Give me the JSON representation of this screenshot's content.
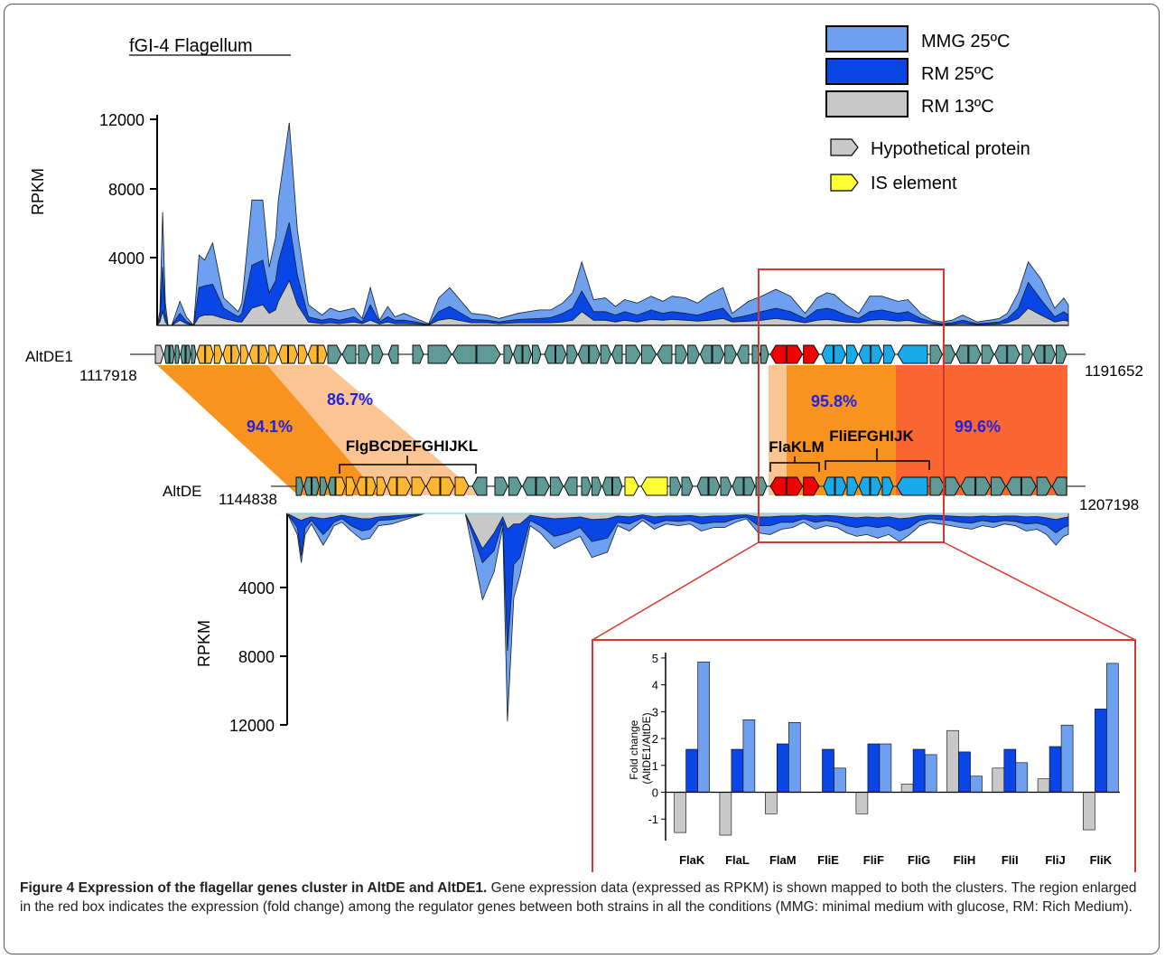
{
  "figure_title": "fGI-4 Flagellum",
  "legend": [
    {
      "label": "MMG 25ºC",
      "color": "#6fa0f0"
    },
    {
      "label": "RM 25ºC",
      "color": "#0a46e6"
    },
    {
      "label": "RM 13ºC",
      "color": "#c8c8c8"
    }
  ],
  "gene_legend": [
    {
      "label": "Hypothetical protein",
      "color": "#c8c8c8"
    },
    {
      "label": "IS element",
      "color": "#ffff33"
    }
  ],
  "top_track": {
    "ylabel": "RPKM",
    "ticks": [
      "12000",
      "8000",
      "4000"
    ],
    "strain": "AltDE1",
    "start": "1117918",
    "end": "1191652"
  },
  "bottom_track": {
    "ylabel": "RPKM",
    "ticks": [
      "4000",
      "8000",
      "12000"
    ],
    "strain": "AltDE",
    "start": "1144838",
    "end": "1207198"
  },
  "identity_labels": [
    "94.1%",
    "86.7%",
    "95.8%",
    "99.6%"
  ],
  "gene_groups": [
    "FlgBCDEFGHIJKL",
    "FlaKLM",
    "FliEFGHIJK"
  ],
  "colors": {
    "gene_default": "#5f9a96",
    "flg_genes": "#ffb732",
    "fla_genes": "#f00000",
    "fli_genes": "#19aaea",
    "highlight_box": "#d9372b",
    "identity_dark": "#f7931e",
    "identity_light": "#fbc593",
    "identity_red": "#fb6633"
  },
  "chart_data": [
    {
      "type": "area",
      "title": "fGI-4 Flagellum",
      "subtitle": "AltDE1",
      "ylabel": "RPKM",
      "ylim": [
        0,
        12000
      ],
      "x": [
        0,
        0.3,
        0.6,
        0.9,
        1.2,
        1.6,
        2.5,
        3.2,
        4,
        4.6,
        5.2,
        6.1,
        7.3,
        8.9,
        9.3,
        10.4,
        11.6,
        12.3,
        13,
        13.3,
        14.5,
        15.4,
        16.6,
        18.1,
        19,
        20,
        21.6,
        22.5,
        23.4,
        24.4,
        25.3,
        26.1,
        27.1,
        28.4,
        29.8,
        30.9,
        32.1,
        34.5,
        36.2,
        37.5,
        39.6,
        41.9,
        43.2,
        44.5,
        45.6,
        46.6,
        47.9,
        49.2,
        50.3,
        51.3,
        52.7,
        54.2,
        55.5,
        56.5,
        58,
        59.3,
        60.6,
        62.1,
        63.1,
        64.9,
        66.3,
        67.9,
        69.5,
        71.1,
        72.4,
        73.5,
        74.3,
        75.6,
        77,
        78.2,
        79.5,
        81.3,
        82.4,
        83.8,
        85.1,
        86.1,
        87.2,
        88.4,
        90,
        91.3,
        92.4,
        93.3,
        94.5,
        95.6,
        97,
        98.5,
        99.5,
        100
      ],
      "series": [
        {
          "name": "MMG 25ºC",
          "values": [
            0,
            800,
            6600,
            1300,
            0,
            0,
            1400,
            500,
            0,
            4100,
            3800,
            4800,
            1600,
            800,
            1300,
            7300,
            7300,
            3400,
            5100,
            7300,
            11800,
            5500,
            1200,
            600,
            1000,
            800,
            1000,
            400,
            2200,
            300,
            1100,
            500,
            700,
            400,
            100,
            1600,
            2200,
            700,
            600,
            400,
            700,
            900,
            900,
            1300,
            1900,
            3700,
            1500,
            1600,
            1100,
            1500,
            1300,
            1700,
            1400,
            1700,
            1600,
            1300,
            1800,
            2200,
            700,
            1400,
            1700,
            2100,
            1700,
            700,
            1600,
            1900,
            1800,
            1200,
            700,
            1700,
            1700,
            1400,
            1500,
            700,
            300,
            200,
            300,
            600,
            200,
            300,
            400,
            700,
            1900,
            3700,
            2700,
            1000,
            1600,
            1200
          ]
        },
        {
          "name": "RM 25ºC",
          "values": [
            0,
            400,
            3400,
            700,
            0,
            0,
            700,
            250,
            0,
            2200,
            2300,
            2400,
            1000,
            500,
            700,
            3500,
            3800,
            1900,
            2600,
            3700,
            6000,
            2900,
            500,
            300,
            400,
            300,
            500,
            200,
            1200,
            200,
            500,
            300,
            300,
            200,
            50,
            800,
            1100,
            350,
            300,
            200,
            350,
            400,
            450,
            700,
            1000,
            2000,
            800,
            800,
            600,
            800,
            600,
            900,
            700,
            800,
            700,
            600,
            800,
            1000,
            400,
            600,
            800,
            1000,
            800,
            400,
            900,
            1000,
            900,
            600,
            400,
            800,
            900,
            700,
            800,
            400,
            200,
            100,
            150,
            300,
            100,
            150,
            200,
            400,
            1000,
            2500,
            1500,
            500,
            800,
            600
          ]
        },
        {
          "name": "RM 13ºC",
          "values": [
            0,
            200,
            800,
            200,
            0,
            0,
            300,
            100,
            0,
            500,
            600,
            600,
            400,
            200,
            200,
            1000,
            1200,
            700,
            900,
            1400,
            2600,
            1200,
            200,
            100,
            150,
            100,
            200,
            100,
            300,
            80,
            200,
            100,
            100,
            80,
            20,
            300,
            400,
            150,
            150,
            100,
            150,
            150,
            150,
            200,
            300,
            800,
            300,
            300,
            200,
            300,
            200,
            350,
            300,
            350,
            300,
            250,
            300,
            400,
            200,
            250,
            300,
            400,
            300,
            150,
            300,
            350,
            300,
            200,
            150,
            300,
            350,
            250,
            300,
            150,
            80,
            50,
            60,
            100,
            50,
            60,
            80,
            150,
            400,
            1000,
            600,
            200,
            300,
            250
          ]
        }
      ]
    },
    {
      "type": "area",
      "subtitle": "AltDE",
      "ylabel": "RPKM",
      "ylim": [
        0,
        12000
      ],
      "x": [
        0,
        1.3,
        1.8,
        2.3,
        3.1,
        4.6,
        5.3,
        6,
        7,
        8.2,
        9.6,
        10.6,
        11.7,
        13.4,
        15.5,
        17.7,
        19.7,
        21.2,
        22.8,
        25,
        26.5,
        27.6,
        28.2,
        29,
        29.8,
        31.1,
        32.4,
        34.2,
        36,
        37.5,
        39,
        41,
        42.3,
        43.8,
        45.5,
        47,
        48.5,
        50.1,
        51.6,
        53,
        54.6,
        56,
        57.4,
        58.8,
        60.3,
        61.8,
        63.3,
        64.7,
        66.1,
        67.6,
        69,
        70.4,
        71.6,
        72.9,
        74.2,
        75.6,
        77,
        78.4,
        79.7,
        81,
        82.3,
        83.6,
        84.9,
        86.2,
        87.6,
        89,
        90.4,
        91.8,
        93.2,
        94.6,
        96,
        97.2,
        98.4,
        99.4,
        100
      ],
      "series": [
        {
          "name": "MMG 25ºC",
          "values": [
            0,
            1200,
            2800,
            1200,
            600,
            1800,
            1300,
            700,
            500,
            1000,
            1500,
            1400,
            700,
            600,
            300,
            0,
            0,
            0,
            0,
            4900,
            3300,
            800,
            11800,
            4800,
            3500,
            700,
            1100,
            2000,
            1600,
            1300,
            2500,
            2200,
            700,
            1000,
            400,
            900,
            600,
            700,
            600,
            1000,
            800,
            800,
            500,
            300,
            1100,
            1200,
            900,
            800,
            500,
            900,
            700,
            800,
            1100,
            1300,
            1200,
            1400,
            1200,
            1600,
            1200,
            700,
            500,
            600,
            700,
            800,
            900,
            700,
            800,
            600,
            700,
            1000,
            900,
            1200,
            1800,
            1300,
            1200
          ]
        },
        {
          "name": "RM 25ºC",
          "values": [
            0,
            800,
            2400,
            800,
            400,
            1200,
            900,
            500,
            300,
            700,
            1000,
            900,
            400,
            350,
            200,
            0,
            0,
            0,
            0,
            2800,
            2100,
            500,
            7800,
            2900,
            2500,
            400,
            700,
            1300,
            1100,
            800,
            1600,
            1400,
            500,
            600,
            250,
            600,
            400,
            450,
            400,
            600,
            500,
            500,
            300,
            200,
            700,
            700,
            500,
            500,
            300,
            500,
            400,
            500,
            700,
            800,
            700,
            800,
            700,
            1000,
            800,
            400,
            300,
            350,
            400,
            500,
            550,
            400,
            500,
            400,
            450,
            600,
            550,
            700,
            1100,
            800,
            700
          ]
        },
        {
          "name": "RM 13ºC",
          "values": [
            0,
            300,
            400,
            300,
            200,
            300,
            250,
            200,
            100,
            200,
            300,
            300,
            200,
            150,
            80,
            0,
            0,
            0,
            0,
            2000,
            1100,
            200,
            900,
            600,
            600,
            100,
            200,
            300,
            250,
            200,
            350,
            300,
            150,
            200,
            80,
            200,
            150,
            150,
            120,
            200,
            150,
            150,
            100,
            80,
            200,
            200,
            150,
            150,
            100,
            150,
            120,
            150,
            200,
            250,
            200,
            250,
            200,
            300,
            250,
            150,
            100,
            120,
            150,
            180,
            200,
            150,
            180,
            150,
            150,
            200,
            180,
            250,
            350,
            250,
            200
          ]
        }
      ]
    },
    {
      "type": "bar",
      "ylabel": "Fold change\n(AltDE1/AltDE)",
      "ylim": [
        -1.8,
        5.2
      ],
      "yticks": [
        "5",
        "4",
        "3",
        "2",
        "1",
        "0",
        "-1"
      ],
      "categories": [
        "FlaK",
        "FlaL",
        "FlaM",
        "FliE",
        "FliF",
        "FliG",
        "FliH",
        "FliI",
        "FliJ",
        "FliK"
      ],
      "series": [
        {
          "name": "RM 13ºC",
          "values": [
            -1.5,
            -1.6,
            -0.8,
            0,
            -0.8,
            0.3,
            2.3,
            0.9,
            0.5,
            -1.4
          ]
        },
        {
          "name": "RM 25ºC",
          "values": [
            1.6,
            1.6,
            1.8,
            1.6,
            1.8,
            1.6,
            1.5,
            1.6,
            1.7,
            3.1
          ]
        },
        {
          "name": "MMG 25ºC",
          "values": [
            4.85,
            2.7,
            2.6,
            0.9,
            1.8,
            1.4,
            0.6,
            1.1,
            2.5,
            4.8
          ]
        }
      ]
    }
  ],
  "caption": {
    "label": "Figure 4 Expression of the flagellar genes cluster in AltDE and AltDE1.",
    "text": " Gene expression data (expressed as RPKM) is shown mapped to both the clusters. The region enlarged in the red box indicates the expression (fold change) among the regulator genes between both strains in all the conditions (MMG: minimal medium with glucose, RM: Rich Medium)."
  }
}
